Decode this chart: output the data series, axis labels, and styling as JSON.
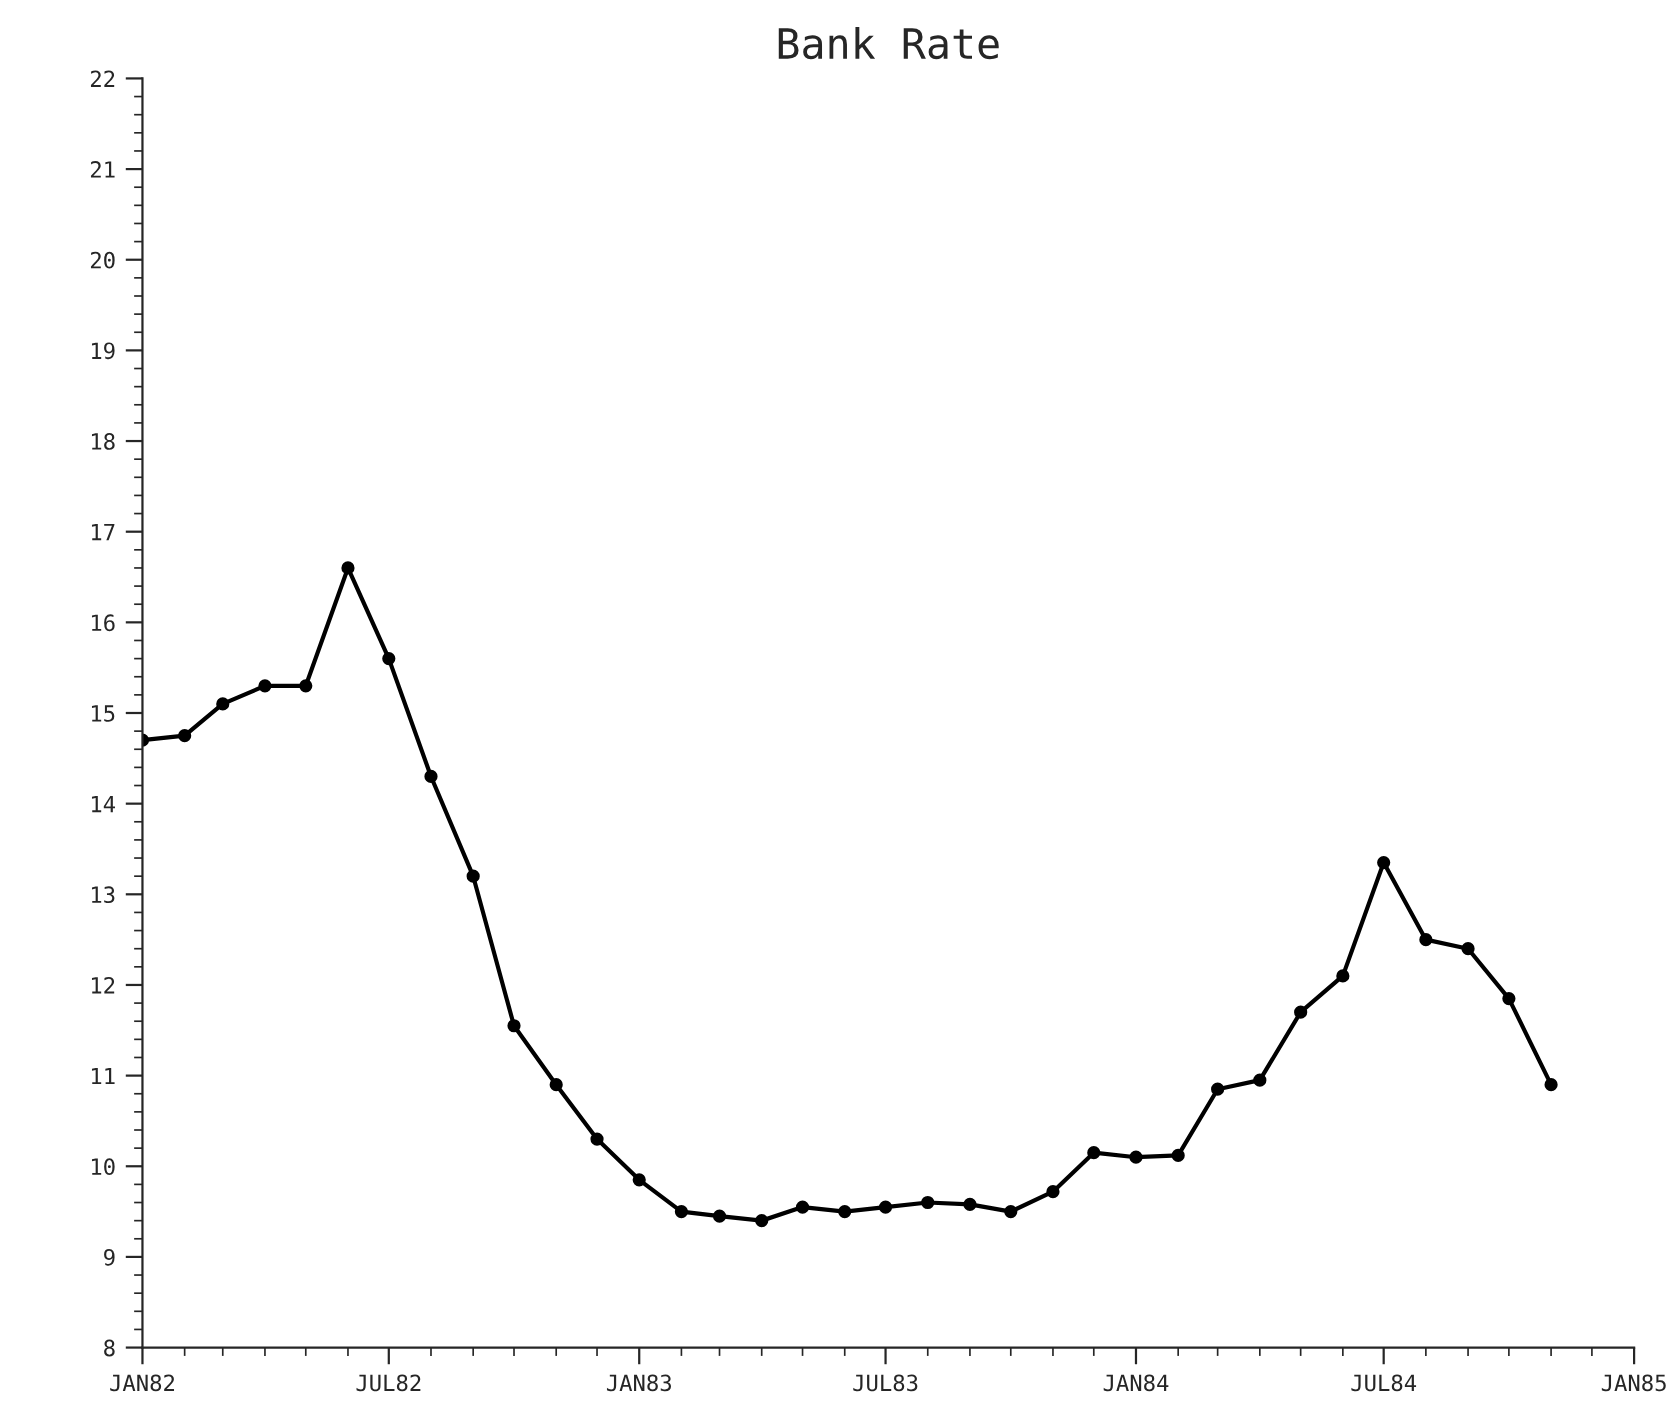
{
  "chart_data": {
    "type": "line",
    "title": "Bank Rate",
    "x": [
      "1982-01",
      "1982-02",
      "1982-03",
      "1982-04",
      "1982-05",
      "1982-06",
      "1982-07",
      "1982-08",
      "1982-09",
      "1982-10",
      "1982-11",
      "1982-12",
      "1983-01",
      "1983-02",
      "1983-03",
      "1983-04",
      "1983-05",
      "1983-06",
      "1983-07",
      "1983-08",
      "1983-09",
      "1983-10",
      "1983-11",
      "1983-12",
      "1984-01",
      "1984-02",
      "1984-03",
      "1984-04",
      "1984-05",
      "1984-06",
      "1984-07",
      "1984-08",
      "1984-09",
      "1984-10",
      "1984-11"
    ],
    "series": [
      {
        "color": "#000000",
        "values": [
          14.7,
          14.75,
          15.1,
          15.3,
          15.3,
          16.6,
          15.6,
          14.3,
          13.2,
          11.55,
          10.9,
          10.3,
          9.85,
          9.5,
          9.45,
          9.4,
          9.55,
          9.5,
          9.55,
          9.6,
          9.58,
          9.5,
          9.72,
          10.15,
          10.1,
          10.12,
          10.85,
          10.95,
          11.7,
          12.1,
          13.35,
          12.5,
          12.4,
          11.85,
          10.9
        ]
      }
    ],
    "xlim": [
      "1982-01",
      "1985-01"
    ],
    "xticks": [
      {
        "value": "1982-01",
        "label": "JAN82"
      },
      {
        "value": "1982-07",
        "label": "JUL82"
      },
      {
        "value": "1983-01",
        "label": "JAN83"
      },
      {
        "value": "1983-07",
        "label": "JUL83"
      },
      {
        "value": "1984-01",
        "label": "JAN84"
      },
      {
        "value": "1984-07",
        "label": "JUL84"
      },
      {
        "value": "1985-01",
        "label": "JAN85"
      }
    ],
    "ylim": [
      8,
      22
    ],
    "yticks": [
      8,
      9,
      10,
      11,
      12,
      13,
      14,
      15,
      16,
      17,
      18,
      19,
      20,
      21,
      22
    ],
    "grid": false,
    "legend": false,
    "marker": "circle",
    "line_style": "solid"
  }
}
